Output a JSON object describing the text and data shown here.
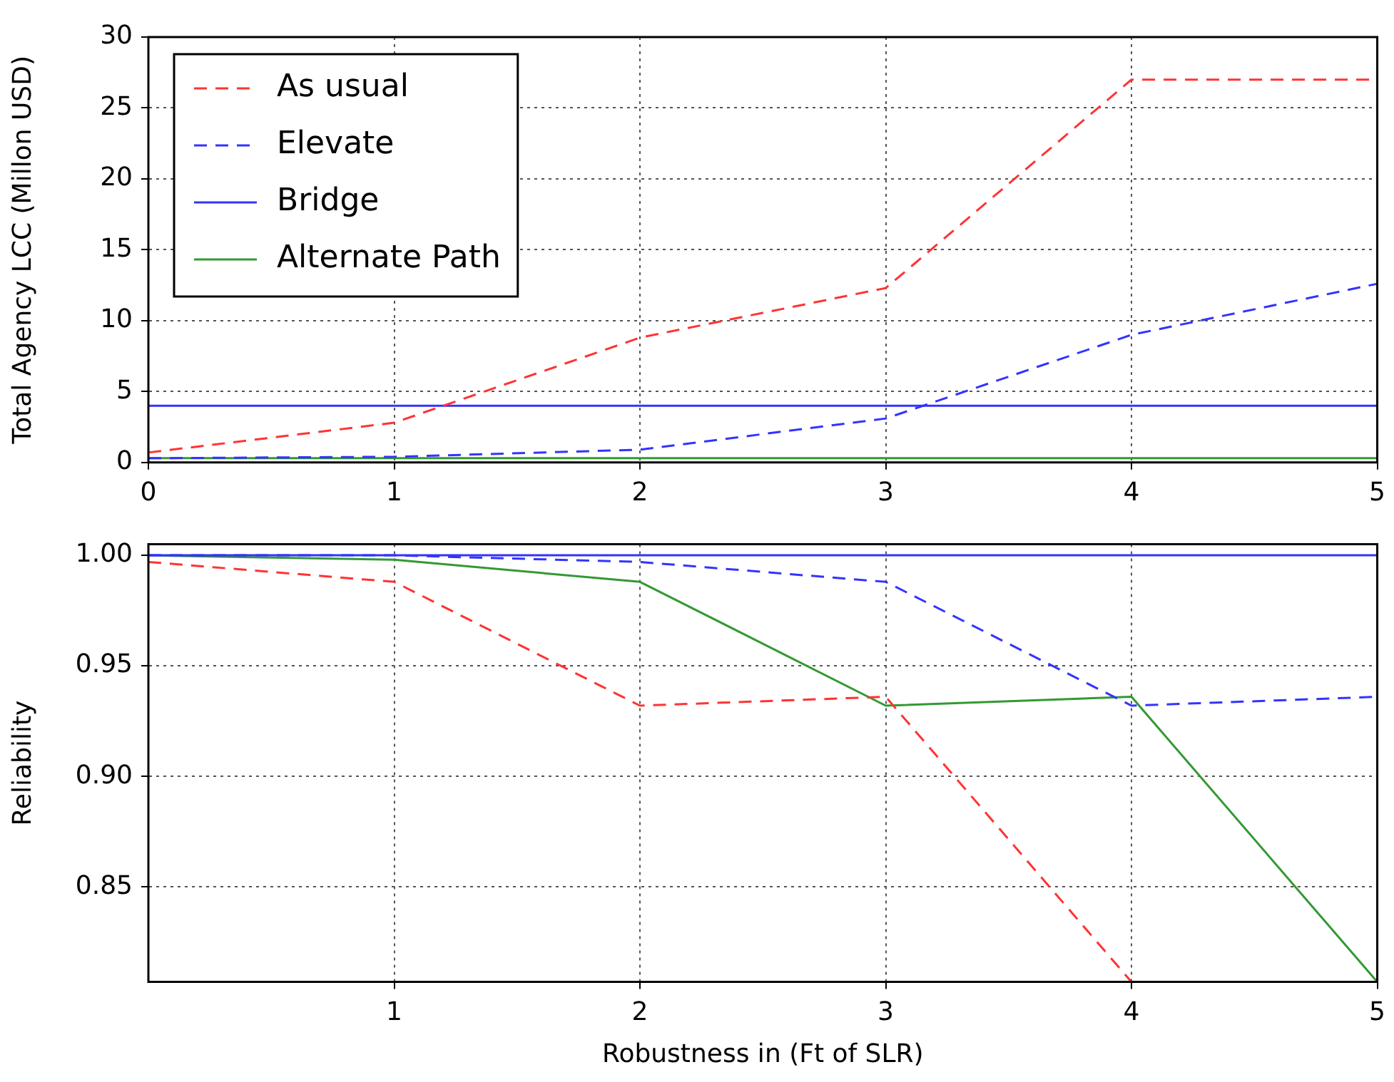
{
  "chart_data": [
    {
      "type": "line",
      "ylabel": "Total Agency LCC (Millon USD)",
      "x": [
        0,
        1,
        2,
        3,
        4,
        5
      ],
      "xlim": [
        0,
        5
      ],
      "xticks": [
        0,
        1,
        2,
        3,
        4,
        5
      ],
      "ylim": [
        0,
        30
      ],
      "yticks": [
        0,
        5,
        10,
        15,
        20,
        25,
        30
      ],
      "grid": true,
      "legend": "top left",
      "series": [
        {
          "name": "As usual",
          "color": "#ff3333",
          "line_style": "dashed",
          "values": [
            0.7,
            2.8,
            8.8,
            12.3,
            27,
            27
          ]
        },
        {
          "name": "Elevate",
          "color": "#3333ff",
          "line_style": "dashed",
          "values": [
            0.3,
            0.4,
            0.9,
            3.1,
            9.0,
            12.6
          ]
        },
        {
          "name": "Bridge",
          "color": "#3333ff",
          "line_style": "solid",
          "values": [
            4,
            4,
            4,
            4,
            4,
            4
          ]
        },
        {
          "name": "Alternate Path",
          "color": "#339933",
          "line_style": "solid",
          "values": [
            0.3,
            0.3,
            0.3,
            0.3,
            0.3,
            0.3
          ]
        }
      ]
    },
    {
      "type": "line",
      "xlabel": "Robustness in (Ft of SLR)",
      "ylabel": "Reliability",
      "x": [
        0,
        1,
        2,
        3,
        4,
        5
      ],
      "xlim": [
        0,
        5
      ],
      "xticks": [
        1,
        2,
        3,
        4,
        5
      ],
      "ylim": [
        0.807,
        1.005
      ],
      "yticks": [
        {
          "value": 0.85,
          "label": "0.85"
        },
        {
          "value": 0.9,
          "label": "0.90"
        },
        {
          "value": 0.95,
          "label": "0.95"
        },
        {
          "value": 1.0,
          "label": "1.00"
        }
      ],
      "grid": true,
      "series": [
        {
          "color": "#ff3333",
          "line_style": "dashed",
          "values": [
            0.997,
            0.988,
            0.932,
            0.936,
            0.807,
            null
          ]
        },
        {
          "color": "#3333ff",
          "line_style": "dashed",
          "values": [
            1.0,
            1.0,
            0.997,
            0.988,
            0.932,
            0.936
          ]
        },
        {
          "color": "#3333ff",
          "line_style": "solid",
          "values": [
            1.0,
            1.0,
            1.0,
            1.0,
            1.0,
            1.0
          ]
        },
        {
          "color": "#339933",
          "line_style": "solid",
          "values": [
            1.0,
            0.998,
            0.988,
            0.932,
            0.936,
            0.807
          ]
        }
      ]
    }
  ]
}
